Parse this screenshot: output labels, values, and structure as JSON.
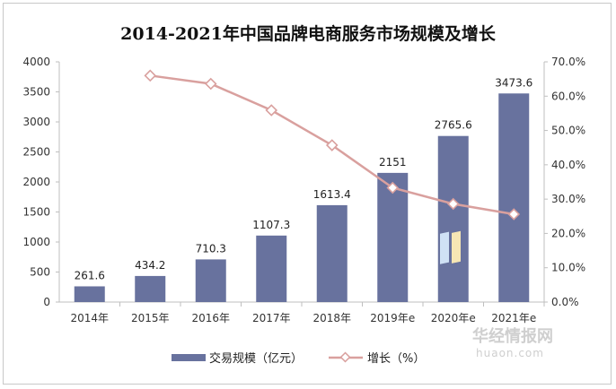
{
  "chart_data": {
    "type": "bar+line",
    "title": "2014-2021年中国品牌电商服务市场规模及增长",
    "categories": [
      "2014年",
      "2015年",
      "2016年",
      "2017年",
      "2018年",
      "2019年e",
      "2020年e",
      "2021年e"
    ],
    "series": [
      {
        "name": "交易规模（亿元）",
        "type": "bar",
        "axis": "left",
        "color": "#68729e",
        "values": [
          261.6,
          434.2,
          710.3,
          1107.3,
          1613.4,
          2151,
          2765.6,
          3473.6
        ],
        "labels": [
          "261.6",
          "434.2",
          "710.3",
          "1107.3",
          "1613.4",
          "2151",
          "2765.6",
          "3473.6"
        ]
      },
      {
        "name": "增长（%）",
        "type": "line",
        "axis": "right",
        "color": "#d9a09e",
        "values": [
          null,
          66.0,
          63.6,
          55.9,
          45.7,
          33.3,
          28.6,
          25.6
        ]
      }
    ],
    "y_left": {
      "min": 0,
      "max": 4000,
      "ticks": [
        "0",
        "500",
        "1000",
        "1500",
        "2000",
        "2500",
        "3000",
        "3500",
        "4000"
      ]
    },
    "y_right": {
      "min": 0,
      "max": 70,
      "ticks": [
        "0.0%",
        "10.0%",
        "20.0%",
        "30.0%",
        "40.0%",
        "50.0%",
        "60.0%",
        "70.0%"
      ]
    },
    "grid": false,
    "legend": "bottom"
  },
  "watermark": {
    "cn": "华经情报网",
    "en": "huaon.com"
  }
}
